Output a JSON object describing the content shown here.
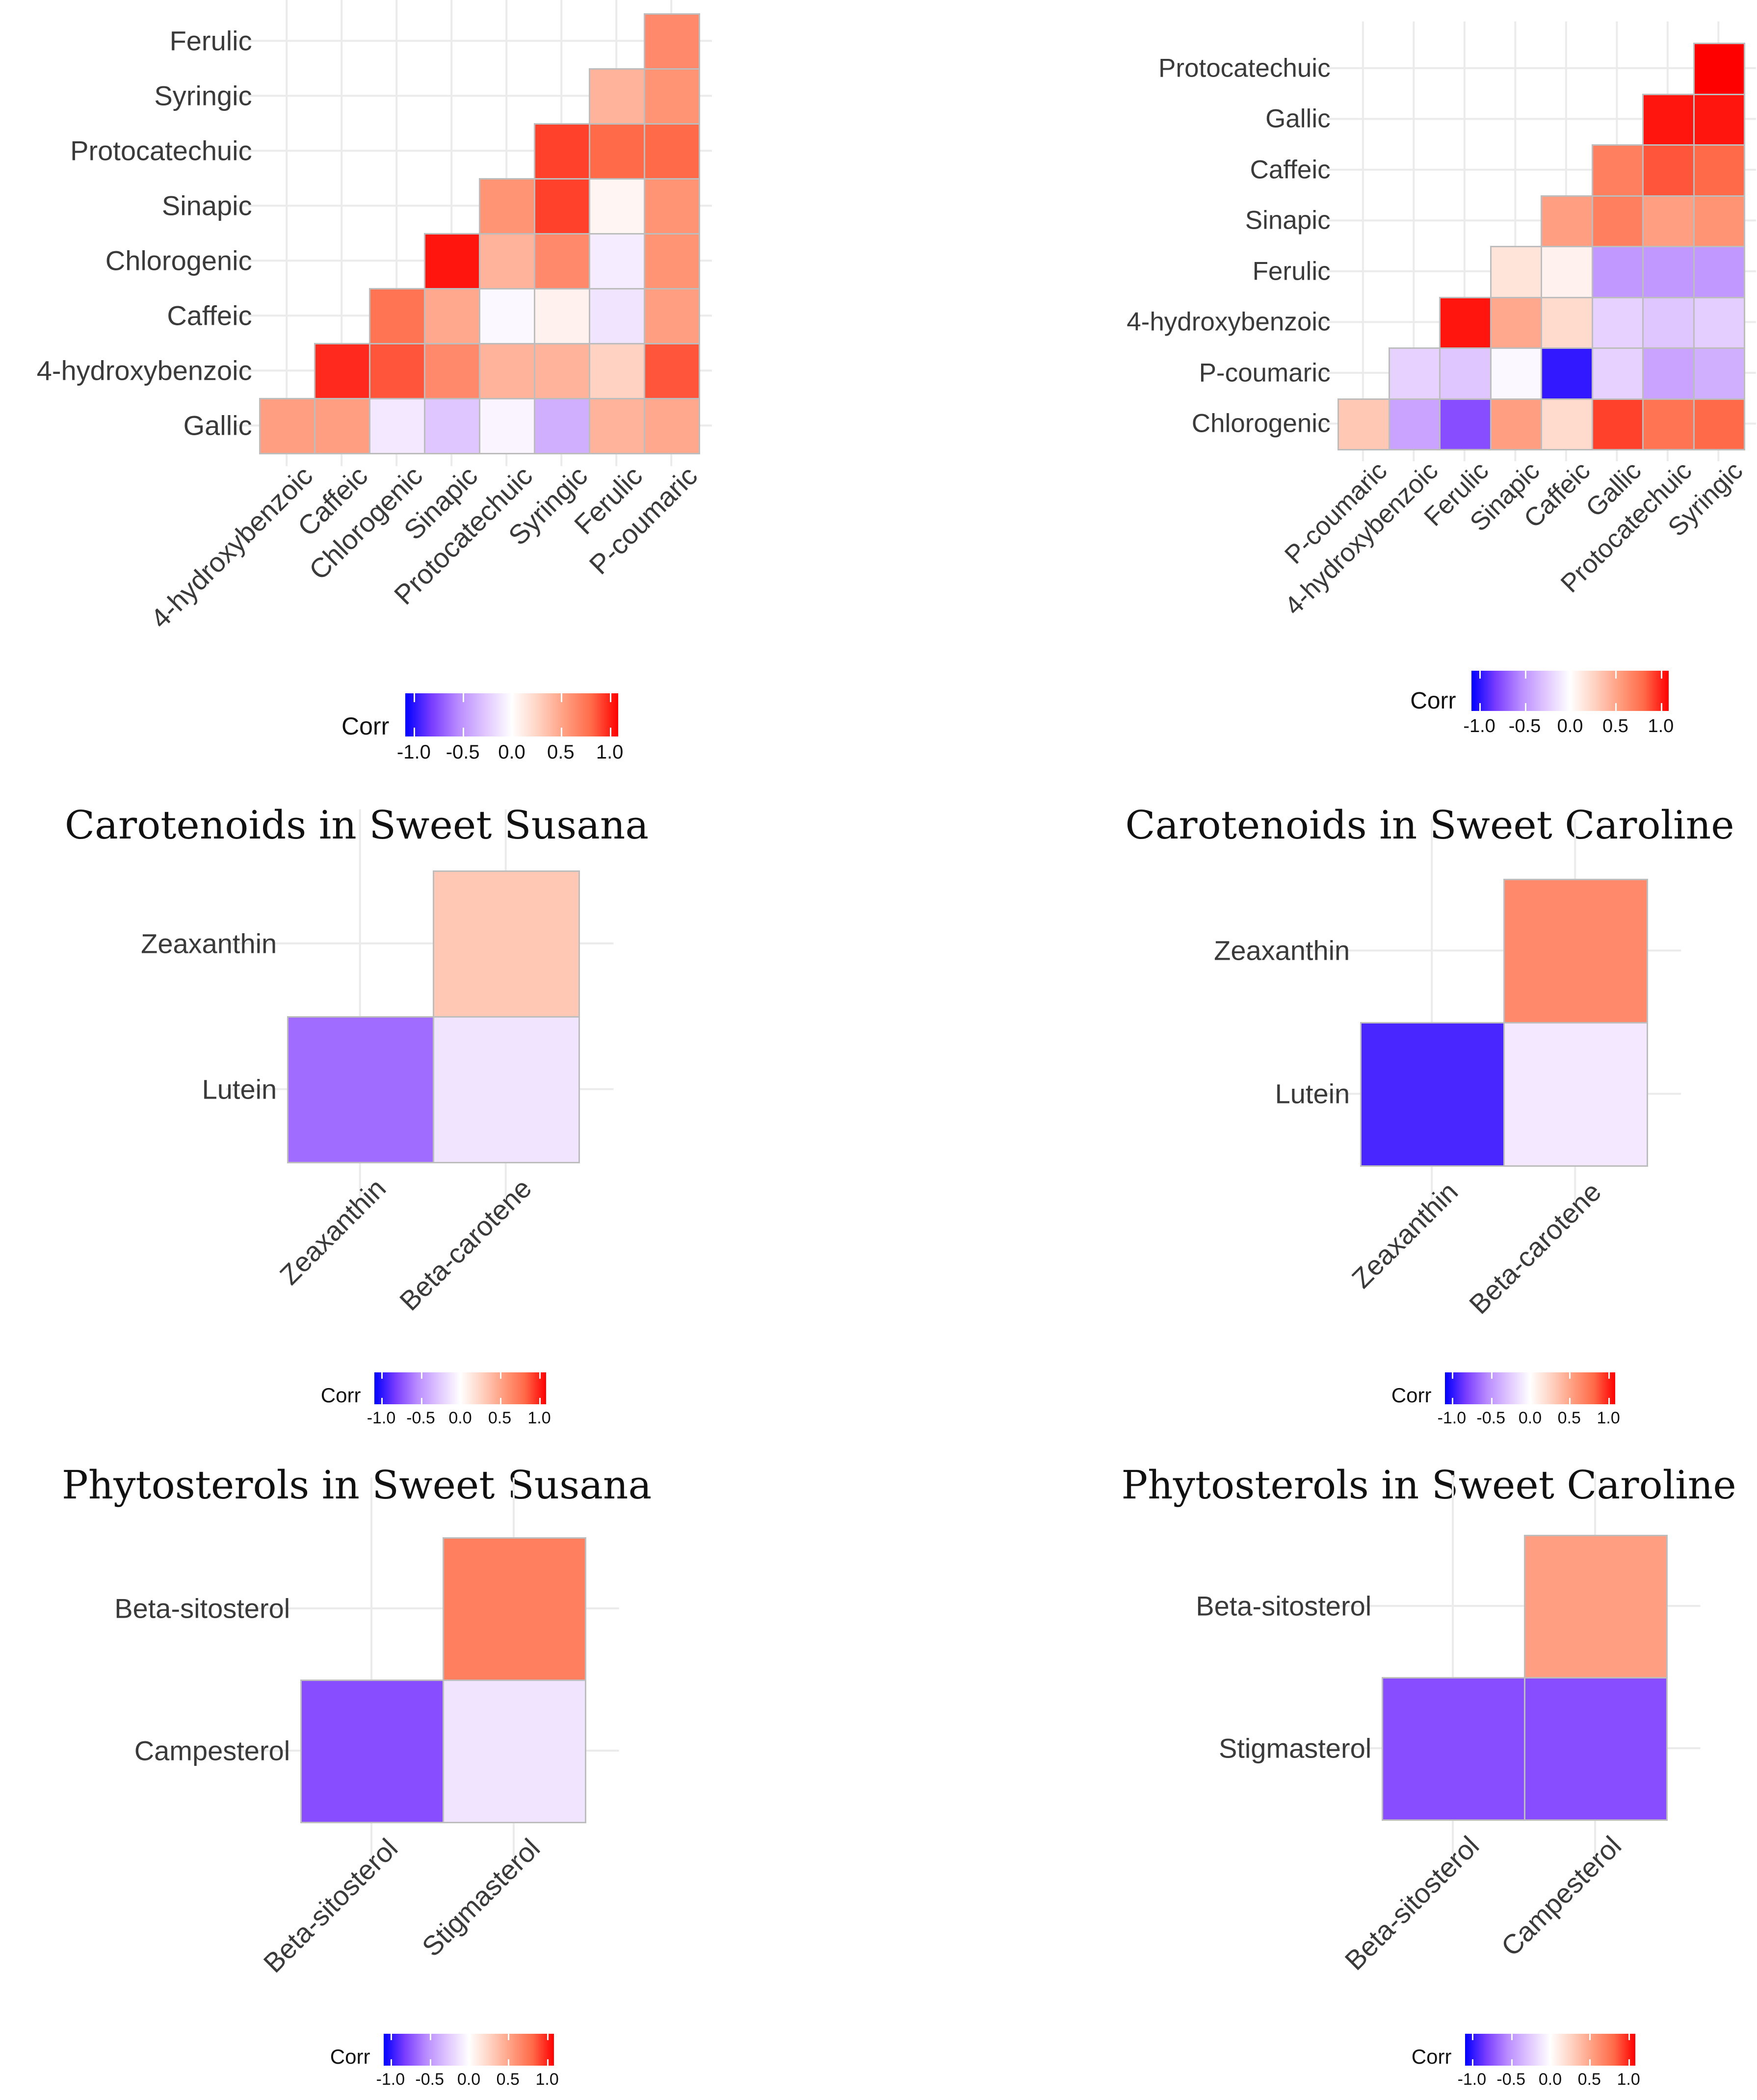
{
  "color_scale": {
    "stops": [
      {
        "value": -1.0,
        "color": "#0000FF"
      },
      {
        "value": -0.75,
        "color": "#7A3DFF"
      },
      {
        "value": -0.5,
        "color": "#B98CFF"
      },
      {
        "value": -0.25,
        "color": "#E0C6FF"
      },
      {
        "value": 0.0,
        "color": "#FFFFFF"
      },
      {
        "value": 0.25,
        "color": "#FFD2C2"
      },
      {
        "value": 0.5,
        "color": "#FF9E80"
      },
      {
        "value": 0.75,
        "color": "#FF6A48"
      },
      {
        "value": 1.0,
        "color": "#FF0000"
      }
    ]
  },
  "chart_data": [
    {
      "type": "heatmap",
      "title": "",
      "legend": {
        "title": "Corr",
        "ticks": [
          "-1.0",
          "-0.5",
          "0.0",
          "0.5",
          "1.0"
        ],
        "range": [
          -1,
          1
        ]
      },
      "x_labels": [
        "4-hydroxybenzoic",
        "Caffeic",
        "Chlorogenic",
        "Sinapic",
        "Protocatechuic",
        "Syringic",
        "Ferulic",
        "P-coumaric"
      ],
      "y_labels_bottom_up": [
        "Gallic",
        "4-hydroxybenzoic",
        "Caffeic",
        "Chlorogenic",
        "Sinapic",
        "Protocatechuic",
        "Syringic",
        "Ferulic"
      ],
      "rows": [
        {
          "start": 0,
          "values": [
            0.5,
            0.5,
            -0.1,
            -0.25,
            -0.05,
            -0.35,
            0.4,
            0.45
          ]
        },
        {
          "start": 1,
          "values": [
            0.9,
            0.8,
            0.6,
            0.4,
            0.4,
            0.25,
            0.8
          ]
        },
        {
          "start": 2,
          "values": [
            0.7,
            0.45,
            -0.03,
            0.07,
            -0.12,
            0.5
          ]
        },
        {
          "start": 3,
          "values": [
            0.95,
            0.4,
            0.6,
            -0.08,
            0.55
          ]
        },
        {
          "start": 4,
          "values": [
            0.55,
            0.85,
            0.05,
            0.55
          ]
        },
        {
          "start": 5,
          "values": [
            0.85,
            0.75,
            0.75
          ]
        },
        {
          "start": 6,
          "values": [
            0.4,
            0.55
          ]
        },
        {
          "start": 7,
          "values": [
            0.6
          ]
        }
      ]
    },
    {
      "type": "heatmap",
      "title": "",
      "legend": {
        "title": "Corr",
        "ticks": [
          "-1.0",
          "-0.5",
          "0.0",
          "0.5",
          "1.0"
        ],
        "range": [
          -1,
          1
        ]
      },
      "x_labels": [
        "P-coumaric",
        "4-hydroxybenzoic",
        "Ferulic",
        "Sinapic",
        "Caffeic",
        "Gallic",
        "Protocatechuic",
        "Syringic"
      ],
      "y_labels_bottom_up": [
        "Chlorogenic",
        "P-coumaric",
        "4-hydroxybenzoic",
        "Ferulic",
        "Sinapic",
        "Caffeic",
        "Gallic",
        "Protocatechuic"
      ],
      "rows": [
        {
          "start": 0,
          "values": [
            0.3,
            -0.4,
            -0.7,
            0.5,
            0.2,
            0.85,
            0.7,
            0.75
          ]
        },
        {
          "start": 1,
          "values": [
            -0.2,
            -0.25,
            -0.03,
            -0.9,
            -0.2,
            -0.4,
            -0.35
          ]
        },
        {
          "start": 2,
          "values": [
            0.95,
            0.45,
            0.2,
            -0.2,
            -0.25,
            -0.22
          ]
        },
        {
          "start": 3,
          "values": [
            0.15,
            0.07,
            -0.45,
            -0.45,
            -0.45
          ]
        },
        {
          "start": 4,
          "values": [
            0.5,
            0.65,
            0.5,
            0.55
          ]
        },
        {
          "start": 5,
          "values": [
            0.65,
            0.8,
            0.75
          ]
        },
        {
          "start": 6,
          "values": [
            0.95,
            0.95
          ]
        },
        {
          "start": 7,
          "values": [
            1.0
          ]
        }
      ]
    },
    {
      "type": "heatmap",
      "title": "Carotenoids in Sweet Susana",
      "legend": {
        "title": "Corr",
        "ticks": [
          "-1.0",
          "-0.5",
          "0.0",
          "0.5",
          "1.0"
        ],
        "range": [
          -1,
          1
        ]
      },
      "x_labels": [
        "Zeaxanthin",
        "Beta-carotene"
      ],
      "y_labels_bottom_up": [
        "Lutein",
        "Zeaxanthin"
      ],
      "rows": [
        {
          "start": 0,
          "values": [
            -0.6,
            -0.12
          ]
        },
        {
          "start": 1,
          "values": [
            0.3
          ]
        }
      ]
    },
    {
      "type": "heatmap",
      "title": "Carotenoids in Sweet Caroline",
      "legend": {
        "title": "Corr",
        "ticks": [
          "-1.0",
          "-0.5",
          "0.0",
          "0.5",
          "1.0"
        ],
        "range": [
          -1,
          1
        ]
      },
      "x_labels": [
        "Zeaxanthin",
        "Beta-carotene"
      ],
      "y_labels_bottom_up": [
        "Lutein",
        "Zeaxanthin"
      ],
      "rows": [
        {
          "start": 0,
          "values": [
            -0.85,
            -0.1
          ]
        },
        {
          "start": 1,
          "values": [
            0.6
          ]
        }
      ]
    },
    {
      "type": "heatmap",
      "title": "Phytosterols in Sweet Susana",
      "legend": {
        "title": "Corr",
        "ticks": [
          "-1.0",
          "-0.5",
          "0.0",
          "0.5",
          "1.0"
        ],
        "range": [
          -1,
          1
        ]
      },
      "x_labels": [
        "Beta-sitosterol",
        "Stigmasterol"
      ],
      "y_labels_bottom_up": [
        "Campesterol",
        "Beta-sitosterol"
      ],
      "rows": [
        {
          "start": 0,
          "values": [
            -0.7,
            -0.12
          ]
        },
        {
          "start": 1,
          "values": [
            0.65
          ]
        }
      ]
    },
    {
      "type": "heatmap",
      "title": "Phytosterols in Sweet Caroline",
      "legend": {
        "title": "Corr",
        "ticks": [
          "-1.0",
          "-0.5",
          "0.0",
          "0.5",
          "1.0"
        ],
        "range": [
          -1,
          1
        ]
      },
      "x_labels": [
        "Beta-sitosterol",
        "Campesterol"
      ],
      "y_labels_bottom_up": [
        "Stigmasterol",
        "Beta-sitosterol"
      ],
      "rows": [
        {
          "start": 0,
          "values": [
            -0.7,
            -0.7
          ]
        },
        {
          "start": 1,
          "values": [
            0.5
          ]
        }
      ]
    }
  ]
}
